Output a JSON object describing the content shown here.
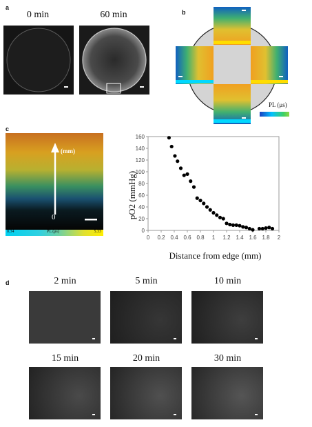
{
  "panels": {
    "a": {
      "label": "a",
      "times": [
        "0 min",
        "60 min"
      ]
    },
    "b": {
      "label": "b",
      "colorbar_label": "PL (μs)",
      "colorbar_colors": [
        "#00c0ff",
        "#40d060",
        "#f0e020",
        "#ff8020"
      ]
    },
    "c": {
      "label": "c",
      "arrow_label": "(mm)",
      "arrow_origin": "0",
      "colorbar_min": "0.34",
      "colorbar_mid": "PL (μs)",
      "colorbar_max": "5.33"
    },
    "d": {
      "label": "d",
      "times": [
        "2 min",
        "5 min",
        "10 min",
        "15 min",
        "20 min",
        "30 min"
      ]
    }
  },
  "chart_data": {
    "type": "scatter",
    "title": "",
    "xlabel": "Distance from edge (mm)",
    "ylabel": "pO2 (mmHg)",
    "xlim": [
      0,
      2
    ],
    "ylim": [
      0,
      160
    ],
    "xticks": [
      "0",
      "0.2",
      "0.4",
      "0.6",
      "0.8",
      "1",
      "1.2",
      "1.4",
      "1.6",
      "1.8",
      "2"
    ],
    "yticks": [
      "0",
      "20",
      "40",
      "60",
      "80",
      "100",
      "120",
      "140",
      "160"
    ],
    "grid": false,
    "series": [
      {
        "x": [
          0.32,
          0.36,
          0.41,
          0.45,
          0.5,
          0.55,
          0.6,
          0.65,
          0.7,
          0.75,
          0.8,
          0.85,
          0.9,
          0.95,
          1.0,
          1.05,
          1.1,
          1.15,
          1.2,
          1.25,
          1.3,
          1.35,
          1.4,
          1.45,
          1.5,
          1.55,
          1.6,
          1.7,
          1.75,
          1.8,
          1.85,
          1.9
        ],
        "y": [
          158,
          143,
          127,
          118,
          106,
          94,
          96,
          84,
          74,
          55,
          51,
          46,
          40,
          35,
          30,
          26,
          22,
          20,
          12,
          10,
          9,
          9,
          8,
          6,
          5,
          3,
          1,
          3,
          3,
          4,
          5,
          3
        ]
      }
    ]
  }
}
